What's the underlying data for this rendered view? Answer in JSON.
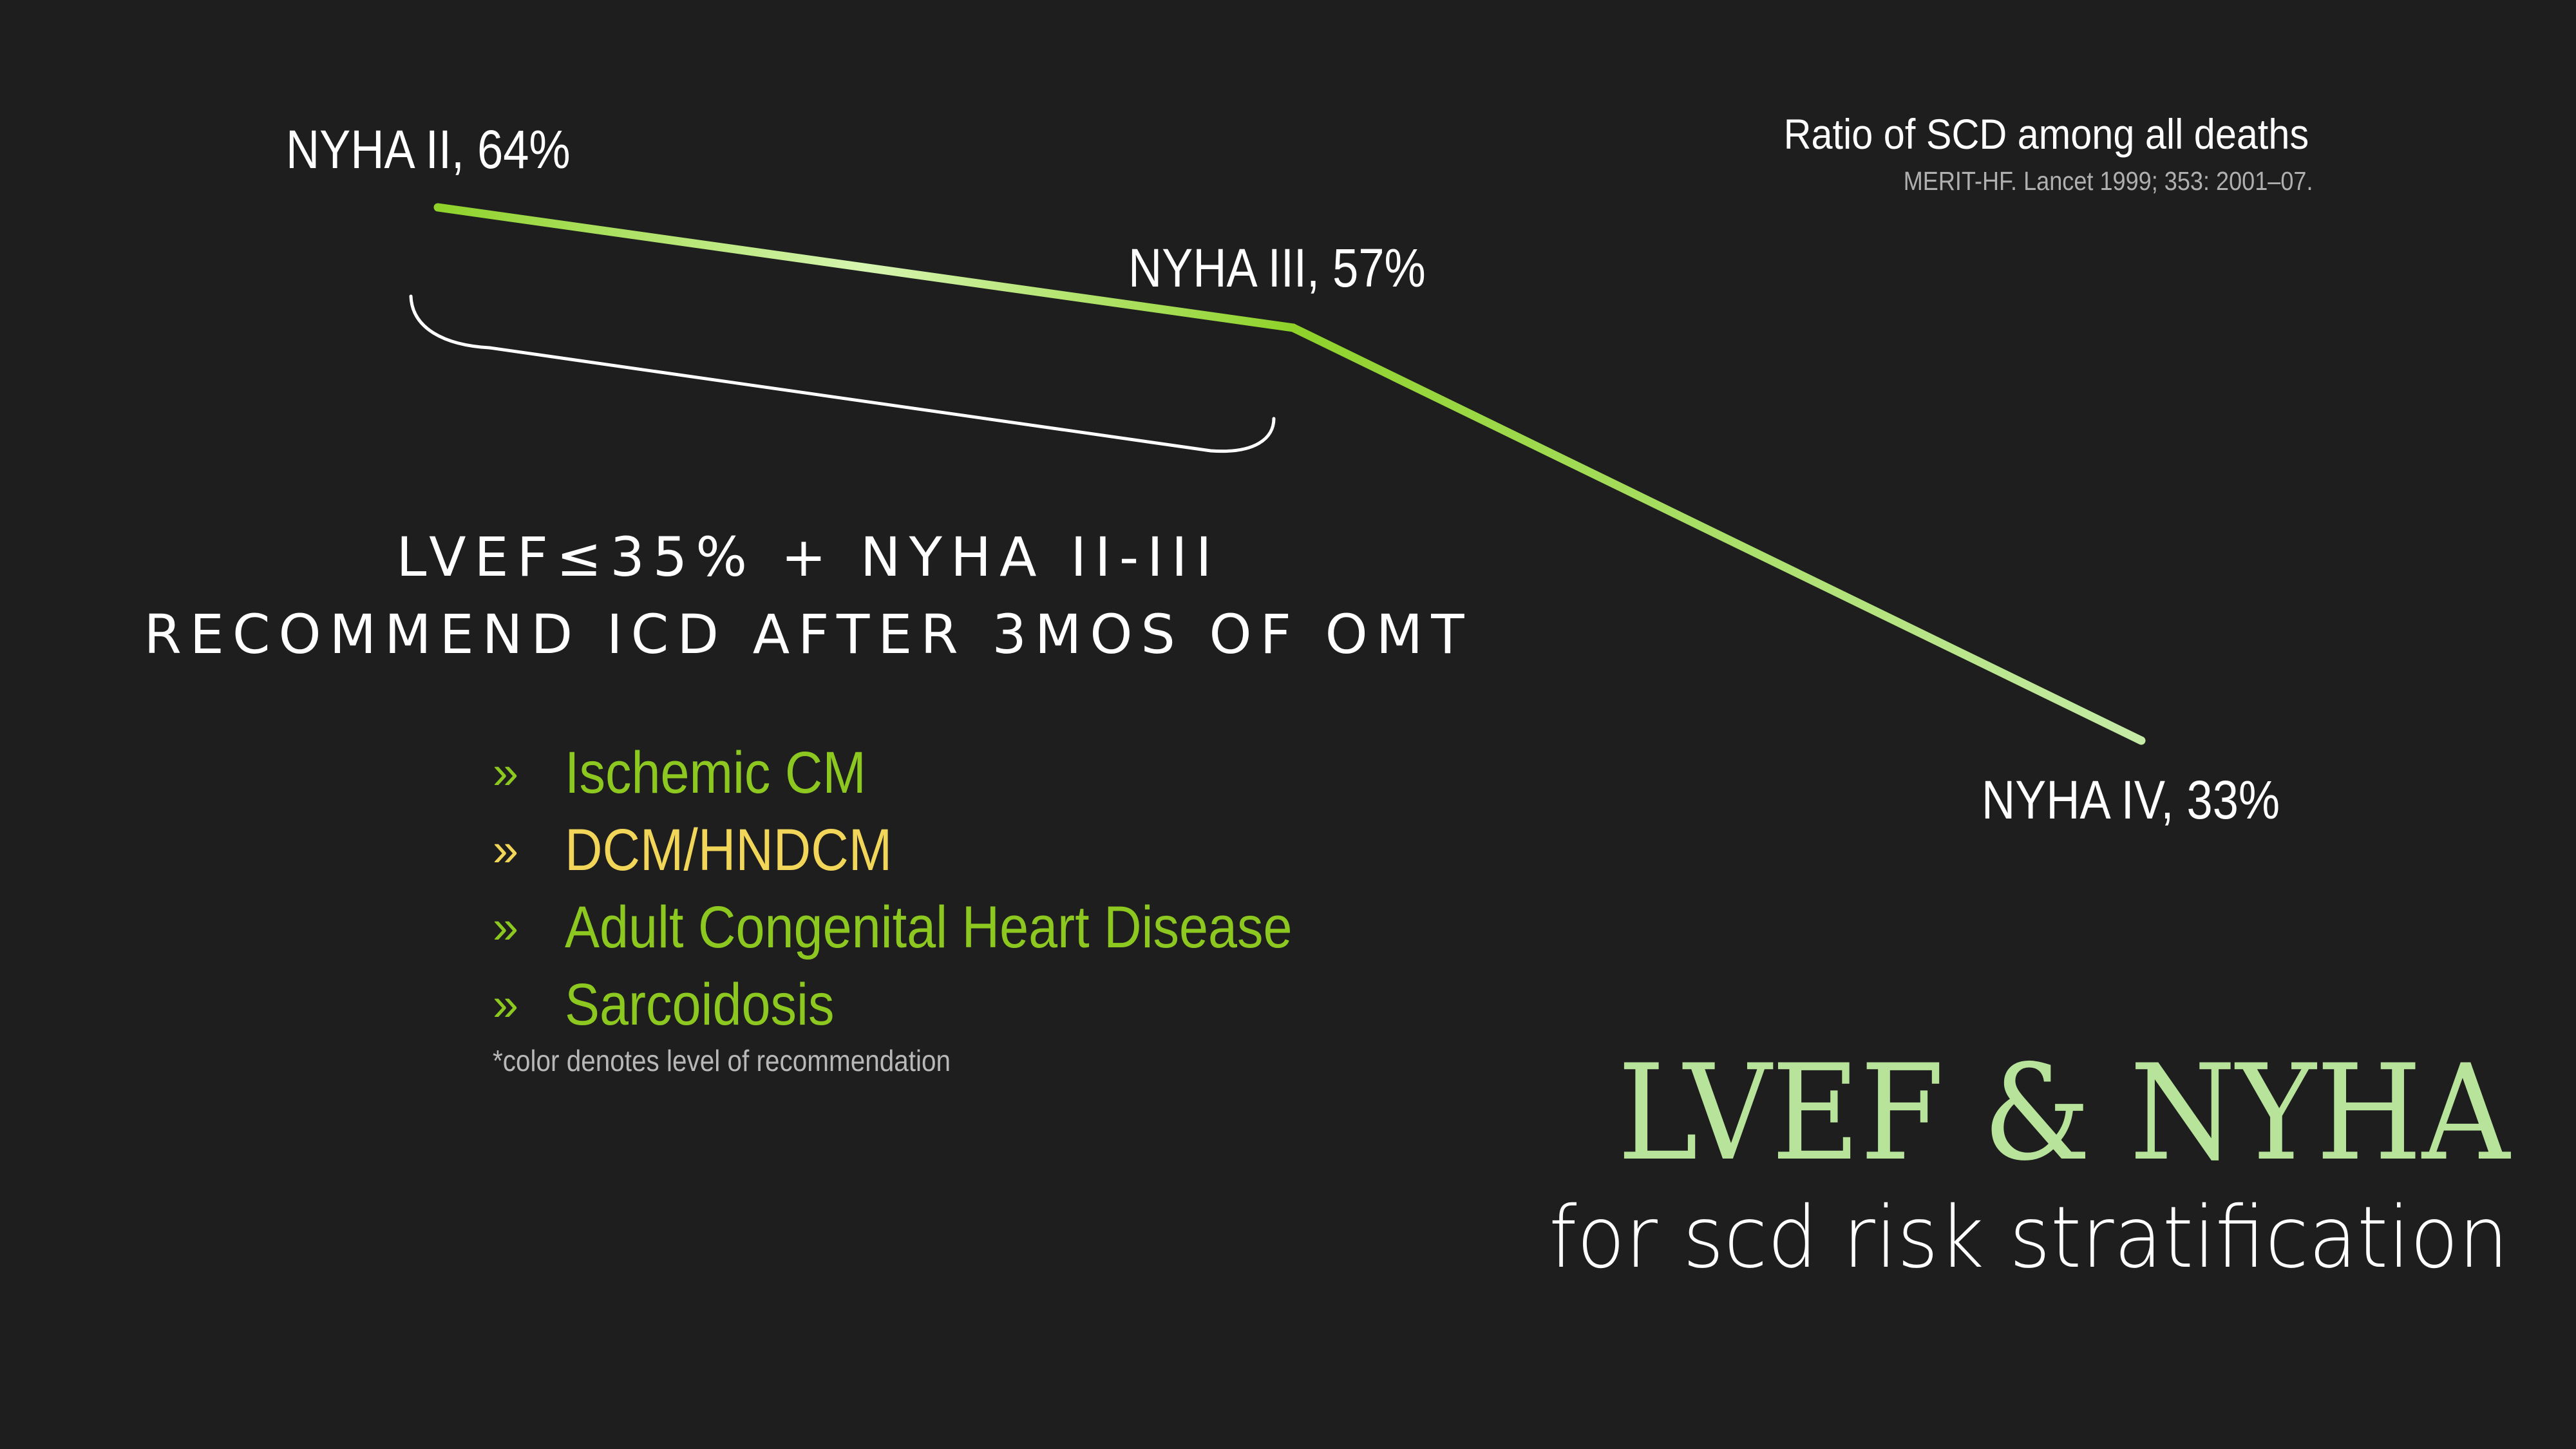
{
  "chart_data": {
    "type": "line",
    "title": "Ratio of SCD among all deaths",
    "source": "MERIT-HF. Lancet 1999; 353: 2001–07.",
    "categories": [
      "NYHA II",
      "NYHA III",
      "NYHA IV"
    ],
    "values": [
      64,
      57,
      33
    ],
    "point_labels": [
      "NYHA II, 64%",
      "NYHA III, 57%",
      "NYHA IV, 33%"
    ],
    "unit": "%",
    "grid": false,
    "colors": {
      "line_start": "#8fd22a",
      "line_mid": "#d6f5b0",
      "line_end": "#c5eba6",
      "bracket": "#ffffff"
    }
  },
  "bracket": {
    "spans": [
      "NYHA II",
      "NYHA III"
    ]
  },
  "recommendation": {
    "line1": "LVEF≤35% + NYHA II-III",
    "line2": "RECOMMEND ICD AFTER 3MOS OF OMT"
  },
  "conditions": [
    {
      "bullet": "»",
      "text": "Ischemic CM",
      "color": "#8cc820"
    },
    {
      "bullet": "»",
      "text": "DCM/HNDCM",
      "color": "#f2d65a"
    },
    {
      "bullet": "»",
      "text": "Adult Congenital Heart Disease",
      "color": "#8cc820"
    },
    {
      "bullet": "»",
      "text": "Sarcoidosis",
      "color": "#8cc820"
    }
  ],
  "footnote": "*color denotes level of recommendation",
  "slide_title": "LVEF & NYHA",
  "slide_subtitle": "for scd risk stratification",
  "colors": {
    "background": "#1e1e1e",
    "title": "#b7e39a",
    "text": "#ffffff"
  }
}
